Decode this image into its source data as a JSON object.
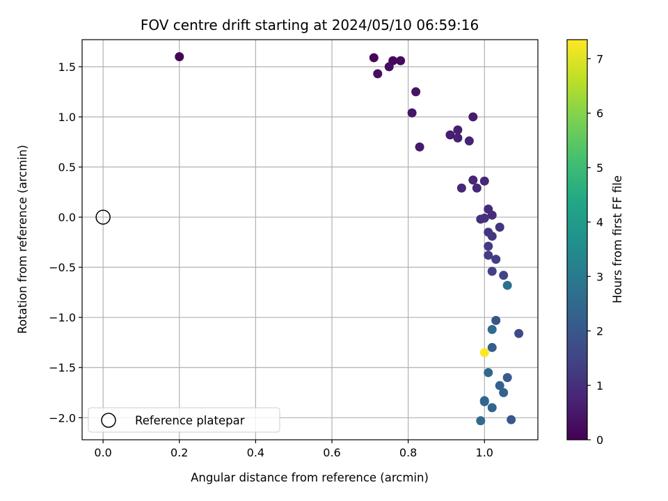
{
  "chart_data": {
    "type": "scatter",
    "title": "FOV centre drift starting at 2024/05/10 06:59:16",
    "xlabel": "Angular distance from reference (arcmin)",
    "ylabel": "Rotation from reference (arcmin)",
    "xlim": [
      -0.055,
      1.14
    ],
    "ylim": [
      -2.22,
      1.77
    ],
    "x_ticks": [
      0.0,
      0.2,
      0.4,
      0.6,
      0.8,
      1.0
    ],
    "x_tick_labels": [
      "0.0",
      "0.2",
      "0.4",
      "0.6",
      "0.8",
      "1.0"
    ],
    "y_ticks": [
      -2.0,
      -1.5,
      -1.0,
      -0.5,
      0.0,
      0.5,
      1.0,
      1.5
    ],
    "y_tick_labels": [
      "−2.0",
      "−1.5",
      "−1.0",
      "−0.5",
      "0.0",
      "0.5",
      "1.0",
      "1.5"
    ],
    "grid": true,
    "colormap": "viridis",
    "colorbar": {
      "label": "Hours from first FF file",
      "range": [
        0,
        7.35
      ],
      "ticks": [
        0,
        1,
        2,
        3,
        4,
        5,
        6,
        7
      ],
      "tick_labels": [
        "0",
        "1",
        "2",
        "3",
        "4",
        "5",
        "6",
        "7"
      ]
    },
    "reference_point": {
      "name": "Reference platepar",
      "x": 0.0,
      "y": 0.0
    },
    "legend": {
      "position": "lower-left",
      "entries": [
        "Reference platepar"
      ]
    },
    "points": [
      {
        "x": 0.2,
        "y": 1.6,
        "c": 0.05
      },
      {
        "x": 0.71,
        "y": 1.59,
        "c": 0.1
      },
      {
        "x": 0.76,
        "y": 1.56,
        "c": 0.15
      },
      {
        "x": 0.78,
        "y": 1.56,
        "c": 0.2
      },
      {
        "x": 0.75,
        "y": 1.5,
        "c": 0.25
      },
      {
        "x": 0.72,
        "y": 1.43,
        "c": 0.3
      },
      {
        "x": 0.82,
        "y": 1.25,
        "c": 0.4
      },
      {
        "x": 0.81,
        "y": 1.04,
        "c": 0.45
      },
      {
        "x": 0.83,
        "y": 0.7,
        "c": 0.5
      },
      {
        "x": 0.97,
        "y": 1.0,
        "c": 0.55
      },
      {
        "x": 0.91,
        "y": 0.82,
        "c": 0.6
      },
      {
        "x": 0.93,
        "y": 0.87,
        "c": 0.62
      },
      {
        "x": 0.93,
        "y": 0.79,
        "c": 0.65
      },
      {
        "x": 0.96,
        "y": 0.76,
        "c": 0.7
      },
      {
        "x": 0.97,
        "y": 0.37,
        "c": 0.75
      },
      {
        "x": 1.0,
        "y": 0.36,
        "c": 0.8
      },
      {
        "x": 0.94,
        "y": 0.29,
        "c": 0.8
      },
      {
        "x": 0.98,
        "y": 0.29,
        "c": 0.85
      },
      {
        "x": 1.01,
        "y": 0.08,
        "c": 0.9
      },
      {
        "x": 1.02,
        "y": 0.02,
        "c": 0.95
      },
      {
        "x": 0.99,
        "y": -0.02,
        "c": 1.0
      },
      {
        "x": 1.0,
        "y": -0.01,
        "c": 1.05
      },
      {
        "x": 1.04,
        "y": -0.1,
        "c": 1.1
      },
      {
        "x": 1.01,
        "y": -0.15,
        "c": 1.15
      },
      {
        "x": 1.02,
        "y": -0.19,
        "c": 1.2
      },
      {
        "x": 1.01,
        "y": -0.29,
        "c": 1.25
      },
      {
        "x": 1.01,
        "y": -0.38,
        "c": 1.3
      },
      {
        "x": 1.03,
        "y": -0.42,
        "c": 1.35
      },
      {
        "x": 1.02,
        "y": -0.54,
        "c": 1.4
      },
      {
        "x": 1.05,
        "y": -0.58,
        "c": 1.5
      },
      {
        "x": 1.09,
        "y": -1.16,
        "c": 1.7
      },
      {
        "x": 1.03,
        "y": -1.03,
        "c": 1.9
      },
      {
        "x": 1.07,
        "y": -2.02,
        "c": 2.0
      },
      {
        "x": 1.06,
        "y": -1.6,
        "c": 2.1
      },
      {
        "x": 1.02,
        "y": -1.3,
        "c": 2.2
      },
      {
        "x": 1.04,
        "y": -1.68,
        "c": 2.25
      },
      {
        "x": 1.05,
        "y": -1.75,
        "c": 2.3
      },
      {
        "x": 1.02,
        "y": -1.9,
        "c": 2.35
      },
      {
        "x": 1.0,
        "y": -1.84,
        "c": 2.4
      },
      {
        "x": 1.0,
        "y": -1.83,
        "c": 2.45
      },
      {
        "x": 1.01,
        "y": -1.55,
        "c": 2.5
      },
      {
        "x": 0.99,
        "y": -2.03,
        "c": 2.55
      },
      {
        "x": 1.02,
        "y": -1.12,
        "c": 2.6
      },
      {
        "x": 1.06,
        "y": -0.68,
        "c": 2.7
      },
      {
        "x": 1.0,
        "y": -1.35,
        "c": 7.35
      }
    ]
  }
}
